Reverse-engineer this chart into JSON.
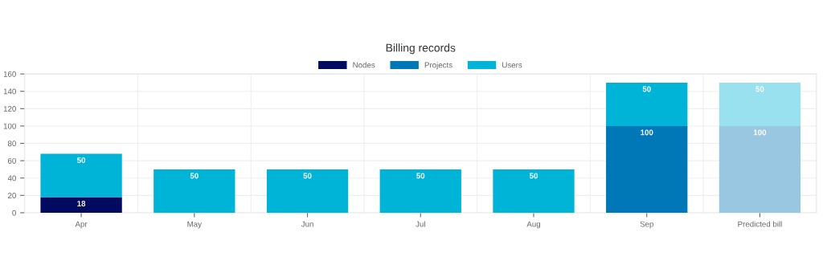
{
  "chart_data": {
    "type": "bar",
    "title": "Billing records",
    "stacked": true,
    "categories": [
      "Apr",
      "May",
      "Jun",
      "Jul",
      "Aug",
      "Sep",
      "Predicted bill"
    ],
    "series": [
      {
        "name": "Nodes",
        "color": "#000a5e",
        "values": [
          18,
          null,
          null,
          null,
          null,
          null,
          null
        ]
      },
      {
        "name": "Projects",
        "color": "#0077b6",
        "colors": [
          "#0077b6",
          "#0077b6",
          "#0077b6",
          "#0077b6",
          "#0077b6",
          "#0077b6",
          "#99c6e0"
        ],
        "values": [
          null,
          null,
          null,
          null,
          null,
          100,
          100
        ]
      },
      {
        "name": "Users",
        "color": "#00b4d8",
        "colors": [
          "#00b4d8",
          "#00b4d8",
          "#00b4d8",
          "#00b4d8",
          "#00b4d8",
          "#00b4d8",
          "#99e1ee"
        ],
        "values": [
          50,
          50,
          50,
          50,
          50,
          50,
          50
        ]
      }
    ],
    "ylim": [
      0,
      160
    ],
    "yticks": [
      0,
      20,
      40,
      60,
      80,
      100,
      120,
      140,
      160
    ],
    "grid": true,
    "legend": "top",
    "data_labels": true
  }
}
